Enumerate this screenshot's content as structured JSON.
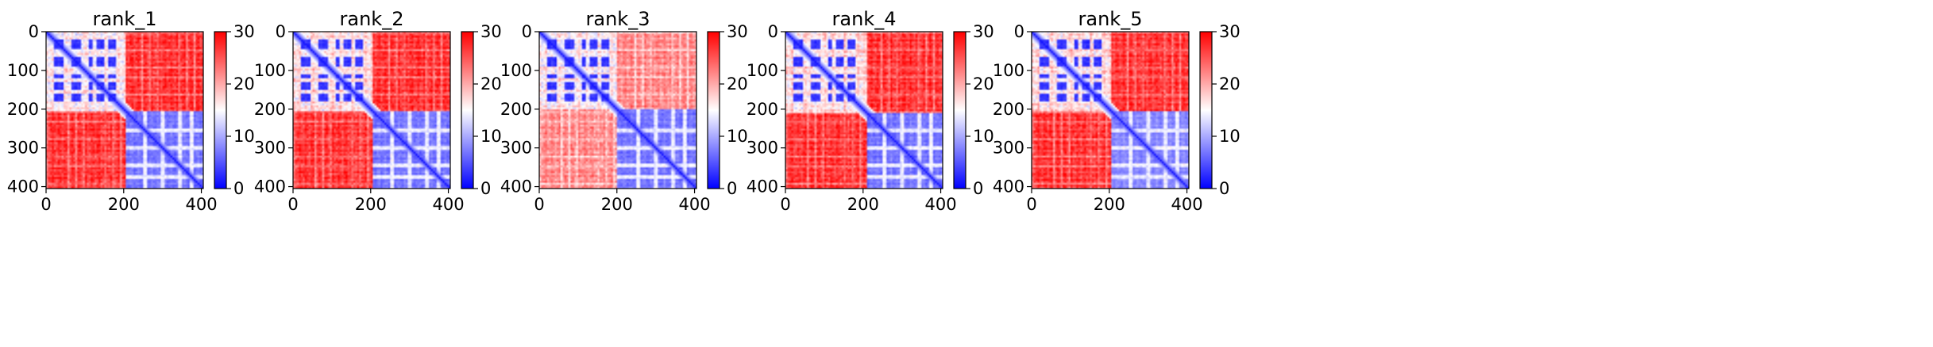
{
  "figure": {
    "colors": {
      "low": "#0000ff",
      "mid": "#ffffff",
      "high": "#ff0000"
    }
  },
  "chart_data": [
    {
      "type": "heatmap",
      "title": "rank_1",
      "xlim": [
        0,
        405
      ],
      "ylim": [
        405,
        0
      ],
      "xticks": [
        0,
        200,
        400
      ],
      "yticks": [
        0,
        100,
        200,
        300,
        400
      ],
      "colorbar": {
        "min": 0,
        "max": 30,
        "ticks": [
          0,
          10,
          20,
          30
        ]
      },
      "domains": [
        [
          0,
          205
        ],
        [
          205,
          405
        ]
      ],
      "motifs": [
        [
          20,
          45
        ],
        [
          65,
          90
        ],
        [
          110,
          120
        ],
        [
          130,
          150
        ],
        [
          160,
          180
        ]
      ],
      "intra_domain_a": 17,
      "intra_domain_b": 5,
      "inter_domain": 27
    },
    {
      "type": "heatmap",
      "title": "rank_2",
      "xlim": [
        0,
        405
      ],
      "ylim": [
        405,
        0
      ],
      "xticks": [
        0,
        200,
        400
      ],
      "yticks": [
        0,
        100,
        200,
        300,
        400
      ],
      "colorbar": {
        "min": 0,
        "max": 30,
        "ticks": [
          0,
          10,
          20,
          30
        ]
      },
      "domains": [
        [
          0,
          205
        ],
        [
          205,
          405
        ]
      ],
      "motifs": [
        [
          20,
          45
        ],
        [
          65,
          90
        ],
        [
          110,
          120
        ],
        [
          130,
          150
        ],
        [
          160,
          180
        ]
      ],
      "intra_domain_a": 18,
      "intra_domain_b": 5,
      "inter_domain": 27
    },
    {
      "type": "heatmap",
      "title": "rank_3",
      "xlim": [
        0,
        405
      ],
      "ylim": [
        405,
        0
      ],
      "xticks": [
        0,
        200,
        400
      ],
      "yticks": [
        0,
        100,
        200,
        300,
        400
      ],
      "colorbar": {
        "min": 0,
        "max": 30,
        "ticks": [
          0,
          10,
          20,
          30
        ]
      },
      "domains": [
        [
          0,
          200
        ],
        [
          200,
          405
        ]
      ],
      "motifs": [
        [
          20,
          45
        ],
        [
          65,
          90
        ],
        [
          110,
          120
        ],
        [
          130,
          150
        ],
        [
          160,
          180
        ]
      ],
      "intra_domain_a": 17,
      "intra_domain_b": 5,
      "inter_domain": 22
    },
    {
      "type": "heatmap",
      "title": "rank_4",
      "xlim": [
        0,
        405
      ],
      "ylim": [
        405,
        0
      ],
      "xticks": [
        0,
        200,
        400
      ],
      "yticks": [
        0,
        100,
        200,
        300,
        400
      ],
      "colorbar": {
        "min": 0,
        "max": 30,
        "ticks": [
          0,
          10,
          20,
          30
        ]
      },
      "domains": [
        [
          0,
          210
        ],
        [
          210,
          405
        ]
      ],
      "motifs": [
        [
          20,
          45
        ],
        [
          65,
          90
        ],
        [
          110,
          120
        ],
        [
          130,
          150
        ],
        [
          160,
          180
        ]
      ],
      "intra_domain_a": 18,
      "intra_domain_b": 5,
      "inter_domain": 27
    },
    {
      "type": "heatmap",
      "title": "rank_5",
      "xlim": [
        0,
        405
      ],
      "ylim": [
        405,
        0
      ],
      "xticks": [
        0,
        200,
        400
      ],
      "yticks": [
        0,
        100,
        200,
        300,
        400
      ],
      "colorbar": {
        "min": 0,
        "max": 30,
        "ticks": [
          0,
          10,
          20,
          30
        ]
      },
      "domains": [
        [
          0,
          205
        ],
        [
          205,
          405
        ]
      ],
      "motifs": [
        [
          20,
          45
        ],
        [
          65,
          90
        ],
        [
          110,
          120
        ],
        [
          130,
          150
        ],
        [
          160,
          180
        ]
      ],
      "intra_domain_a": 18,
      "intra_domain_b": 6,
      "inter_domain": 27
    }
  ]
}
